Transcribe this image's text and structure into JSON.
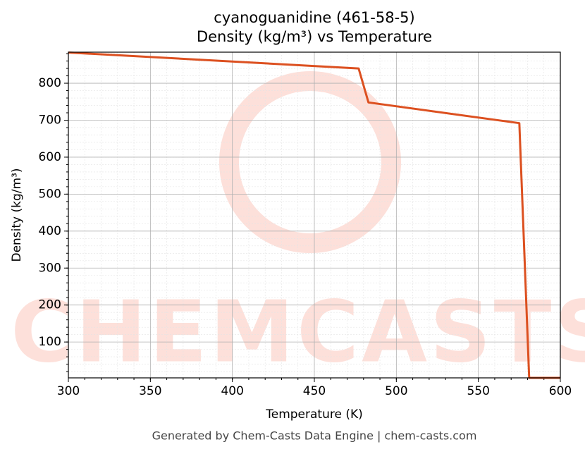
{
  "chart_data": {
    "type": "line",
    "title": "cyanoguanidine (461-58-5)",
    "subtitle": "Density (kg/m³) vs Temperature",
    "x_label": "Temperature (K)",
    "y_label": "Density (kg/m³)",
    "watermark": "CHEMCASTS",
    "footer": "Generated by Chem-Casts Data Engine | chem-casts.com",
    "x": [
      300,
      477,
      483,
      575,
      581,
      600
    ],
    "series": [
      {
        "name": "Density",
        "color": "#dc5020",
        "values": [
          883,
          840,
          748,
          692,
          3,
          3
        ]
      }
    ],
    "xlim": [
      300,
      600
    ],
    "ylim": [
      3,
      884
    ],
    "xticks": [
      300,
      350,
      400,
      450,
      500,
      550,
      600
    ],
    "yticks": [
      100,
      200,
      300,
      400,
      500,
      600,
      700,
      800
    ],
    "grid": true,
    "minor_grid": true
  }
}
